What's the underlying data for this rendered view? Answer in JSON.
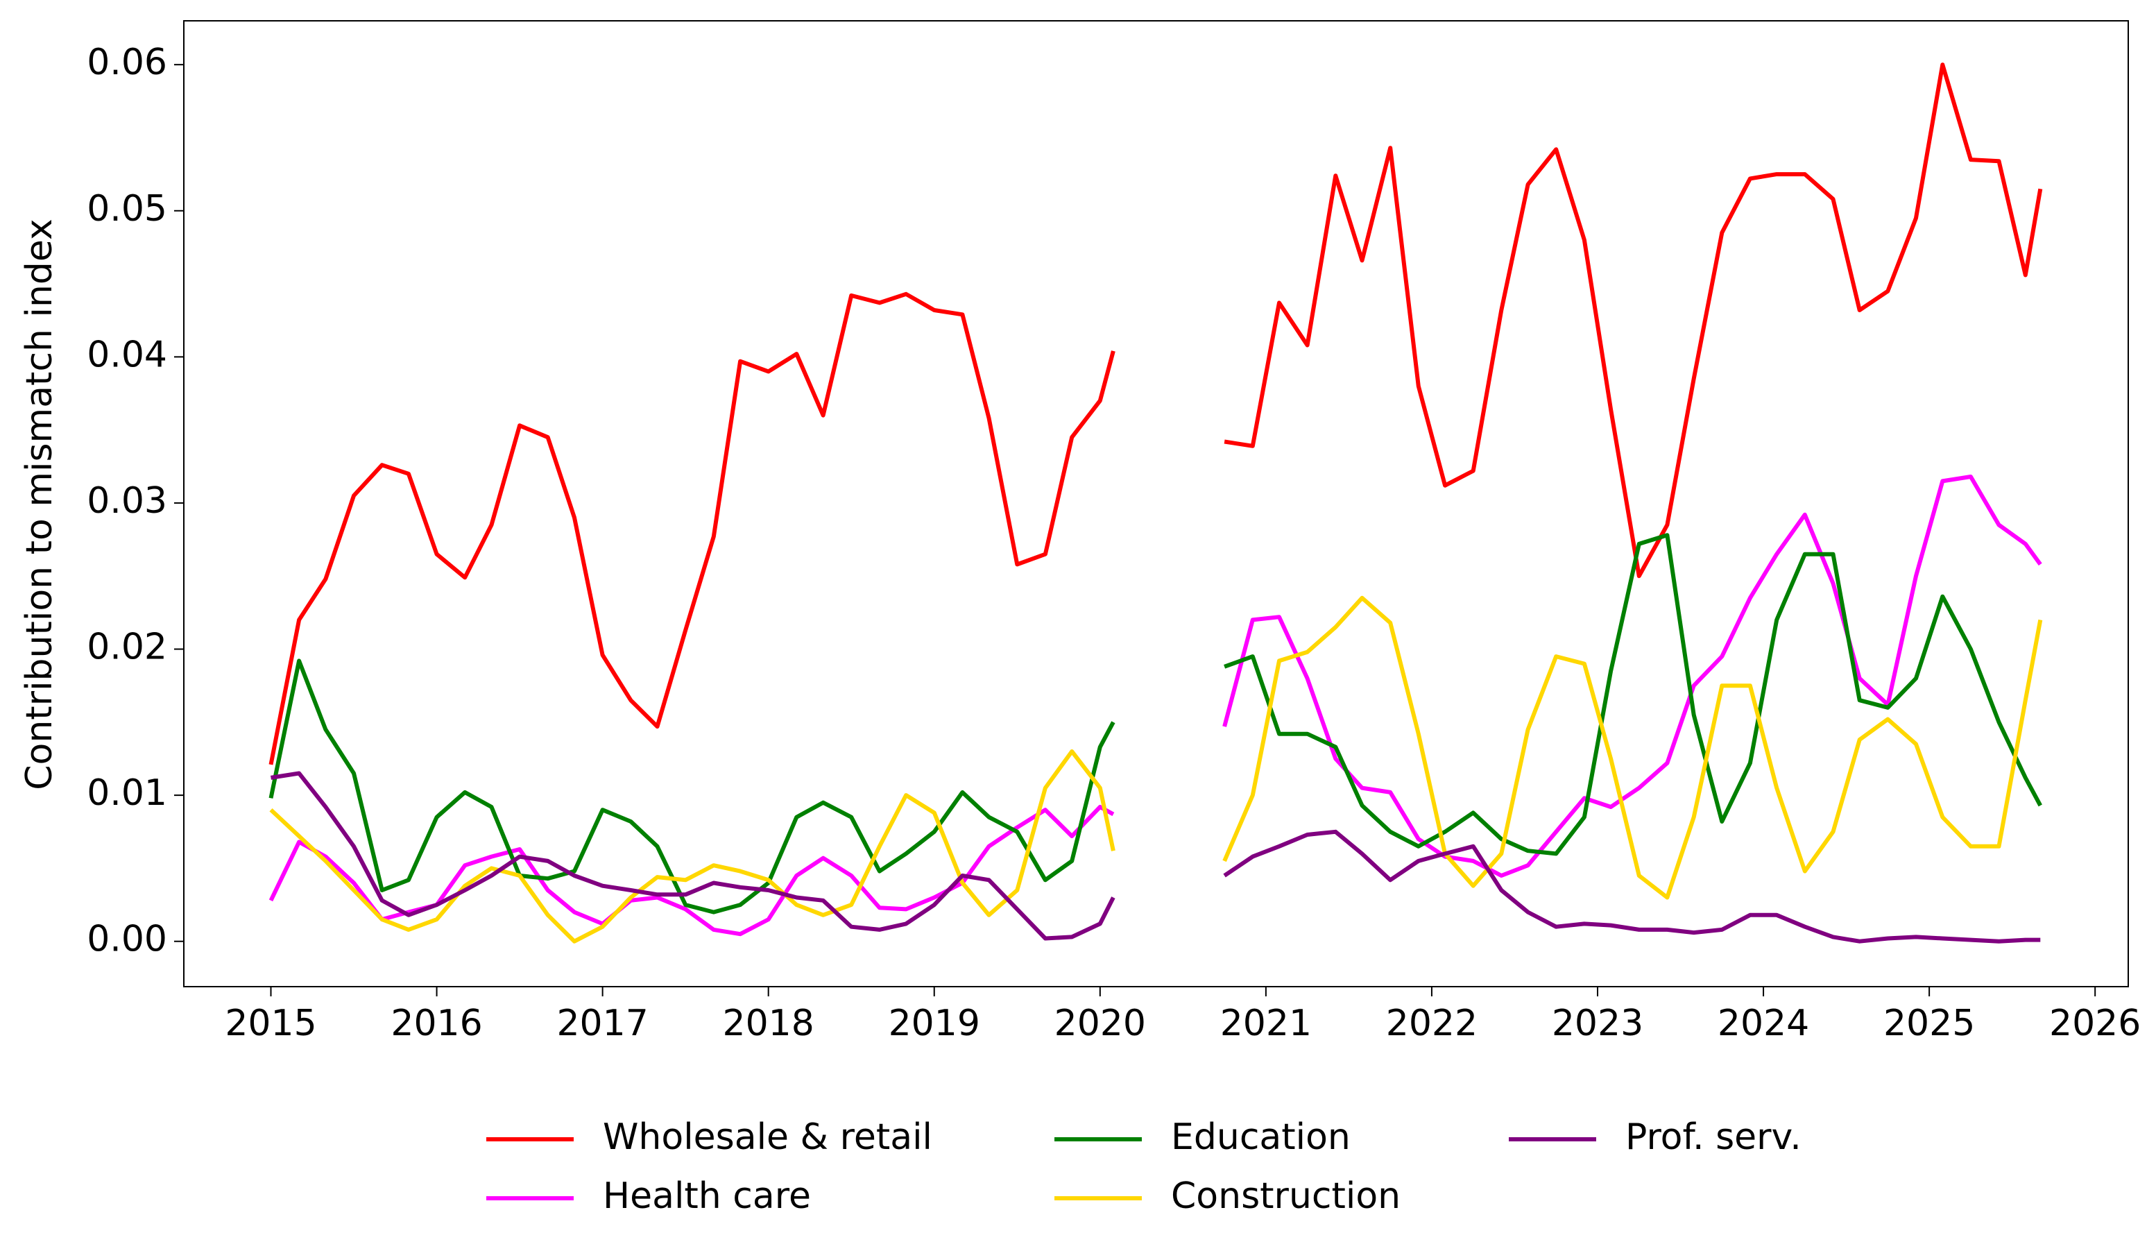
{
  "chart_data": {
    "type": "line",
    "y_label": "Contribution to mismatch index",
    "x": [
      2015.0,
      2015.17,
      2015.33,
      2015.5,
      2015.67,
      2015.83,
      2016.0,
      2016.17,
      2016.33,
      2016.5,
      2016.67,
      2016.83,
      2017.0,
      2017.17,
      2017.33,
      2017.5,
      2017.67,
      2017.83,
      2018.0,
      2018.17,
      2018.33,
      2018.5,
      2018.67,
      2018.83,
      2019.0,
      2019.17,
      2019.33,
      2019.5,
      2019.67,
      2019.83,
      2020.0,
      2020.08,
      2020.4,
      2020.75,
      2020.92,
      2021.08,
      2021.25,
      2021.42,
      2021.58,
      2021.75,
      2021.92,
      2022.08,
      2022.25,
      2022.42,
      2022.58,
      2022.75,
      2022.92,
      2023.08,
      2023.25,
      2023.42,
      2023.58,
      2023.75,
      2023.92,
      2024.08,
      2024.25,
      2024.42,
      2024.58,
      2024.75,
      2024.92,
      2025.08,
      2025.25,
      2025.42,
      2025.58,
      2025.67
    ],
    "series": [
      {
        "name": "Wholesale & retail",
        "color": "#ff0000",
        "values": [
          0.0121,
          0.022,
          0.0248,
          0.0305,
          0.0326,
          0.032,
          0.0265,
          0.0249,
          0.0285,
          0.0353,
          0.0345,
          0.029,
          0.0196,
          0.0165,
          0.0147,
          0.0213,
          0.0277,
          0.0397,
          0.039,
          0.0402,
          0.036,
          0.0442,
          0.0437,
          0.0443,
          0.0432,
          0.0429,
          0.0358,
          0.0258,
          0.0265,
          0.0345,
          0.037,
          0.0404,
          null,
          0.0342,
          0.0339,
          0.0437,
          0.0408,
          0.0524,
          0.0466,
          0.0543,
          0.038,
          0.0312,
          0.0322,
          0.0432,
          0.0518,
          0.0542,
          0.048,
          0.0364,
          0.025,
          0.0285,
          0.0385,
          0.0485,
          0.0522,
          0.0525,
          0.0525,
          0.0508,
          0.0432,
          0.0445,
          0.0495,
          0.06,
          0.0535,
          0.0534,
          0.0456,
          0.0515
        ]
      },
      {
        "name": "Health care",
        "color": "#ff00ff",
        "values": [
          0.0028,
          0.0068,
          0.0058,
          0.004,
          0.0015,
          0.002,
          0.0025,
          0.0052,
          0.0058,
          0.0063,
          0.0035,
          0.002,
          0.0012,
          0.0028,
          0.003,
          0.0022,
          0.0008,
          0.0005,
          0.0015,
          0.0045,
          0.0057,
          0.0045,
          0.0023,
          0.0022,
          0.003,
          0.004,
          0.0065,
          0.0078,
          0.009,
          0.0072,
          0.0092,
          0.0087,
          null,
          0.0147,
          0.022,
          0.0222,
          0.018,
          0.0125,
          0.0105,
          0.0102,
          0.007,
          0.0058,
          0.0055,
          0.0045,
          0.0052,
          0.0075,
          0.0098,
          0.0092,
          0.0105,
          0.0122,
          0.0175,
          0.0195,
          0.0235,
          0.0265,
          0.0292,
          0.0245,
          0.018,
          0.0162,
          0.025,
          0.0315,
          0.0318,
          0.0285,
          0.0272,
          0.0258
        ]
      },
      {
        "name": "Education",
        "color": "#008000",
        "values": [
          0.0098,
          0.0192,
          0.0145,
          0.0115,
          0.0035,
          0.0042,
          0.0085,
          0.0102,
          0.0092,
          0.0045,
          0.0043,
          0.0048,
          0.009,
          0.0082,
          0.0065,
          0.0025,
          0.002,
          0.0025,
          0.004,
          0.0085,
          0.0095,
          0.0085,
          0.0048,
          0.006,
          0.0075,
          0.0102,
          0.0085,
          0.0075,
          0.0042,
          0.0055,
          0.0133,
          0.015,
          null,
          0.0188,
          0.0195,
          0.0142,
          0.0142,
          0.0133,
          0.0093,
          0.0075,
          0.0065,
          0.0075,
          0.0088,
          0.007,
          0.0062,
          0.006,
          0.0085,
          0.0185,
          0.0272,
          0.0278,
          0.0155,
          0.0082,
          0.0122,
          0.022,
          0.0265,
          0.0265,
          0.0165,
          0.016,
          0.018,
          0.0236,
          0.02,
          0.015,
          0.0112,
          0.0093
        ]
      },
      {
        "name": "Construction",
        "color": "#ffd700",
        "values": [
          0.009,
          0.0072,
          0.0055,
          0.0035,
          0.0015,
          0.0008,
          0.0015,
          0.0038,
          0.005,
          0.0045,
          0.0018,
          0.0,
          0.001,
          0.003,
          0.0044,
          0.0042,
          0.0052,
          0.0048,
          0.0042,
          0.0025,
          0.0018,
          0.0025,
          0.0065,
          0.01,
          0.0088,
          0.004,
          0.0018,
          0.0035,
          0.0105,
          0.013,
          0.0105,
          0.0062,
          null,
          0.0055,
          0.01,
          0.0192,
          0.0198,
          0.0215,
          0.0235,
          0.0218,
          0.0142,
          0.006,
          0.0038,
          0.006,
          0.0145,
          0.0195,
          0.019,
          0.0125,
          0.0045,
          0.003,
          0.0085,
          0.0175,
          0.0175,
          0.0105,
          0.0048,
          0.0075,
          0.0138,
          0.0152,
          0.0135,
          0.0085,
          0.0065,
          0.0065,
          0.0165,
          0.022
        ]
      },
      {
        "name": "Prof. serv.",
        "color": "#800080",
        "values": [
          0.0112,
          0.0115,
          0.0092,
          0.0065,
          0.0028,
          0.0018,
          0.0025,
          0.0035,
          0.0045,
          0.0058,
          0.0055,
          0.0045,
          0.0038,
          0.0035,
          0.0032,
          0.0032,
          0.004,
          0.0037,
          0.0035,
          0.003,
          0.0028,
          0.001,
          0.0008,
          0.0012,
          0.0025,
          0.0045,
          0.0042,
          0.0022,
          0.0002,
          0.0003,
          0.0012,
          0.003,
          null,
          0.0045,
          0.0058,
          0.0065,
          0.0073,
          0.0075,
          0.006,
          0.0042,
          0.0055,
          0.006,
          0.0065,
          0.0035,
          0.002,
          0.001,
          0.0012,
          0.0011,
          0.0008,
          0.0008,
          0.0006,
          0.0008,
          0.0018,
          0.0018,
          0.001,
          0.0003,
          0.0,
          0.0002,
          0.0003,
          0.0002,
          0.0001,
          0.0,
          0.0001,
          0.0001
        ]
      }
    ],
    "xlim": [
      2014.475,
      2026.2
    ],
    "xticks": [
      2015,
      2016,
      2017,
      2018,
      2019,
      2020,
      2021,
      2022,
      2023,
      2024,
      2025,
      2026
    ],
    "ylim": [
      -0.0031,
      0.063
    ],
    "yticks": [
      {
        "value": 0,
        "label": "0.00"
      },
      0.01,
      0.02,
      0.03,
      0.04,
      0.05,
      0.06
    ],
    "grid": false,
    "legend": "bottom"
  }
}
